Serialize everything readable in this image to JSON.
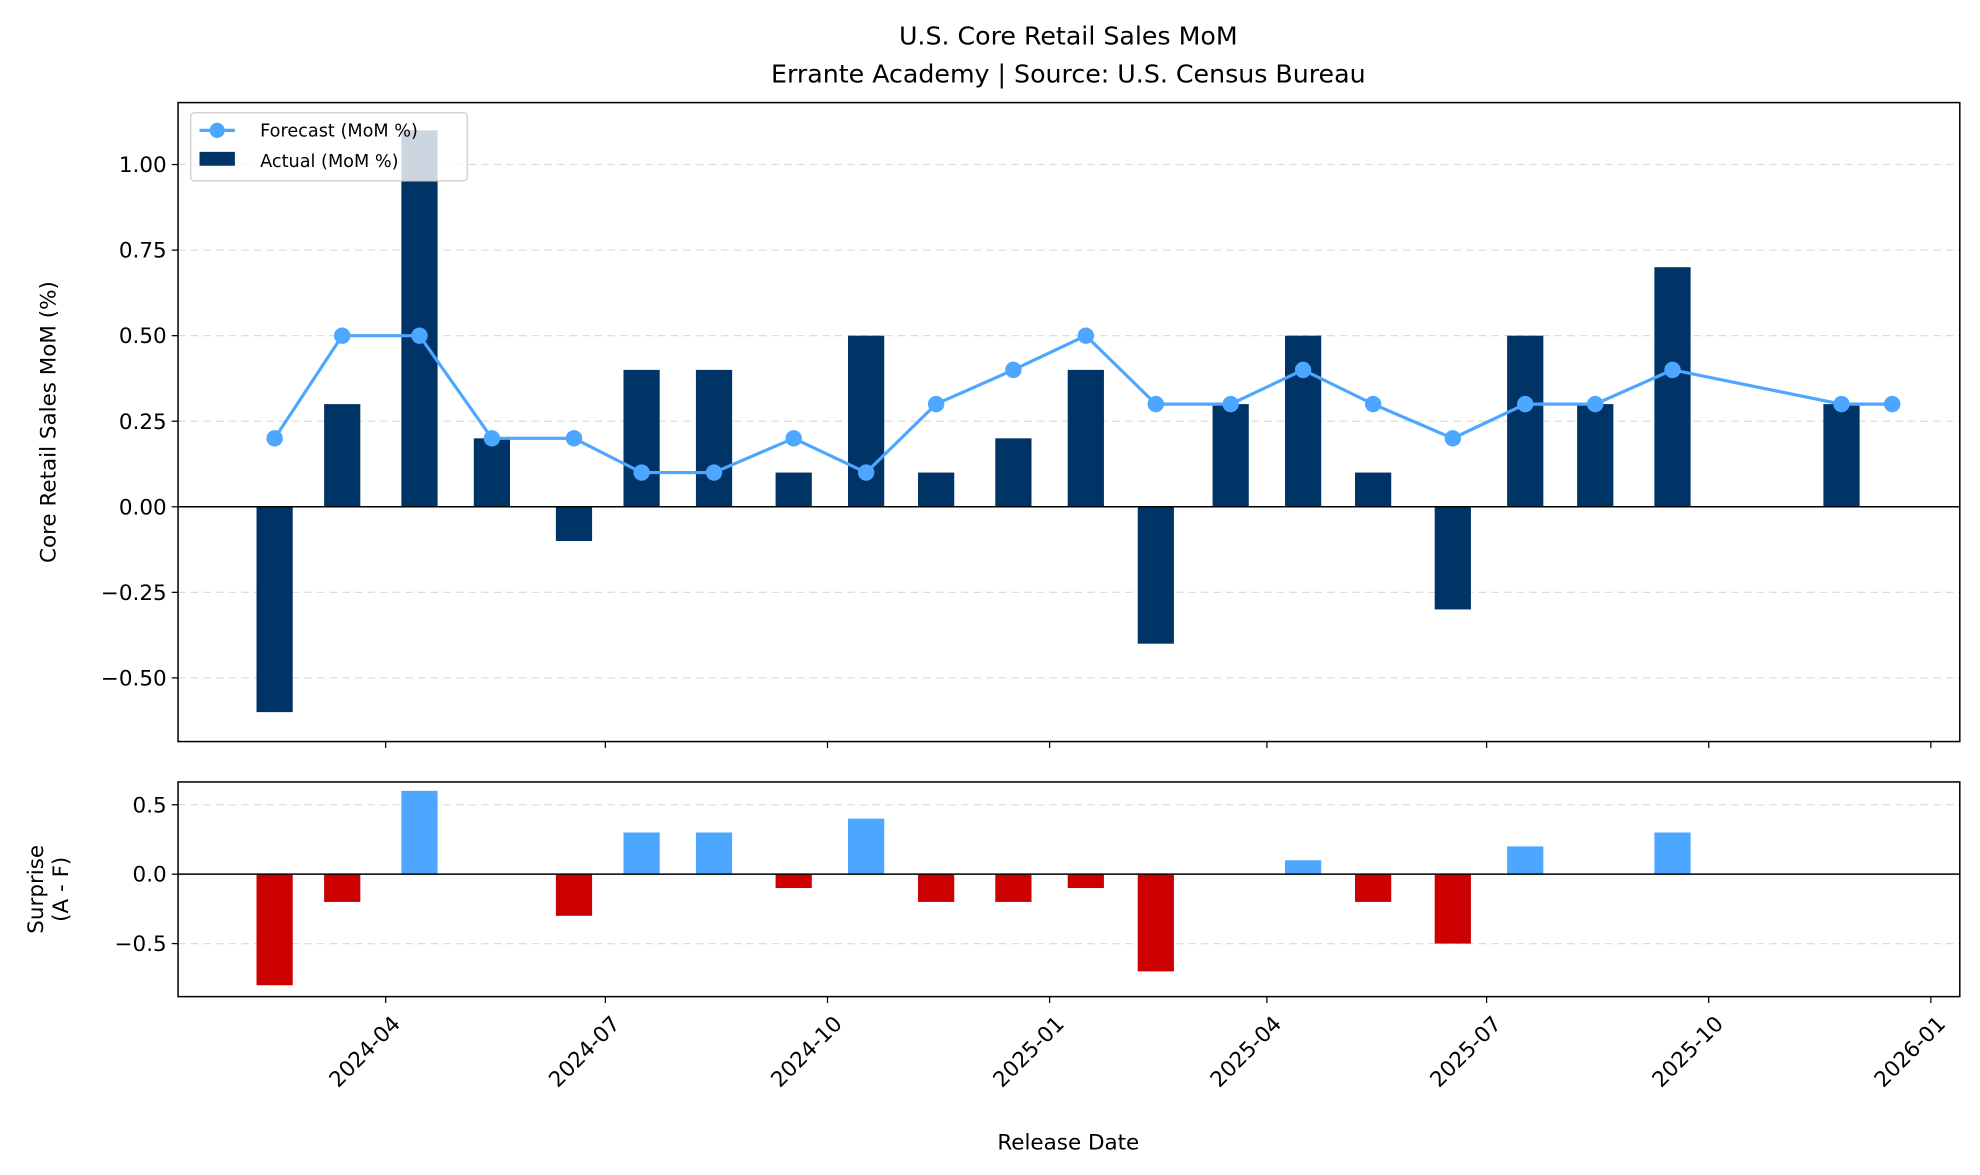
{
  "chart_data": [
    {
      "type": "bar+line",
      "title": "U.S. Core Retail Sales MoM",
      "subtitle": "Errante Academy | Source: U.S. Census Bureau",
      "xlabel": "",
      "ylabel": "Core Retail Sales MoM (%)",
      "ylim": [
        -0.686,
        1.181
      ],
      "yticks": [
        "−0.50",
        "−0.25",
        "0.00",
        "0.25",
        "0.50",
        "0.75",
        "1.00"
      ],
      "ytick_values": [
        -0.5,
        -0.25,
        0,
        0.25,
        0.5,
        0.75,
        1.0
      ],
      "grid": "y dashed",
      "legend_position": "top-left",
      "x": [
        "2024-02-15",
        "2024-03-14",
        "2024-04-15",
        "2024-05-15",
        "2024-06-18",
        "2024-07-16",
        "2024-08-15",
        "2024-09-17",
        "2024-10-17",
        "2024-11-15",
        "2024-12-17",
        "2025-01-16",
        "2025-02-14",
        "2025-03-17",
        "2025-04-16",
        "2025-05-15",
        "2025-06-17",
        "2025-07-17",
        "2025-08-15",
        "2025-09-16",
        "2025-11-25",
        "2025-12-16"
      ],
      "series": [
        {
          "name": "Forecast (MoM %)",
          "type": "line",
          "color": "#4da6ff",
          "values": [
            0.2,
            0.5,
            0.5,
            0.2,
            0.2,
            0.1,
            0.1,
            0.2,
            0.1,
            0.3,
            0.4,
            0.5,
            0.3,
            0.3,
            0.4,
            0.3,
            0.2,
            0.3,
            0.3,
            0.4,
            0.3,
            0.3
          ]
        },
        {
          "name": "Actual (MoM %)",
          "type": "bar",
          "color": "#003366",
          "values": [
            -0.6,
            0.3,
            1.1,
            0.2,
            -0.1,
            0.4,
            0.4,
            0.1,
            0.5,
            0.1,
            0.2,
            0.4,
            -0.4,
            0.3,
            0.5,
            0.1,
            -0.3,
            0.5,
            0.3,
            0.7,
            0.3,
            null
          ]
        }
      ]
    },
    {
      "type": "bar",
      "ylabel": "Surprise\n(A - F)",
      "ylabel_lines": [
        "Surprise",
        "(A - F)"
      ],
      "xlabel": "Release Date",
      "ylim": [
        -0.882,
        0.664
      ],
      "yticks": [
        "−0.5",
        "0.0",
        "0.5"
      ],
      "ytick_values": [
        -0.5,
        0,
        0.5
      ],
      "xlim": [
        "2024-01-06",
        "2026-01-13"
      ],
      "xticks": [
        "2024-04",
        "2024-07",
        "2024-10",
        "2025-01",
        "2025-04",
        "2025-07",
        "2025-10",
        "2026-01"
      ],
      "grid": "y dashed",
      "positive_color": "#4da6ff",
      "negative_color": "#cc0000",
      "values": [
        -0.8,
        -0.2,
        0.6,
        0.0,
        -0.3,
        0.3,
        0.3,
        -0.1,
        0.4,
        -0.2,
        -0.2,
        -0.1,
        -0.7,
        0.0,
        0.1,
        -0.2,
        -0.5,
        0.2,
        0.0,
        0.3,
        0.0,
        null
      ]
    }
  ]
}
